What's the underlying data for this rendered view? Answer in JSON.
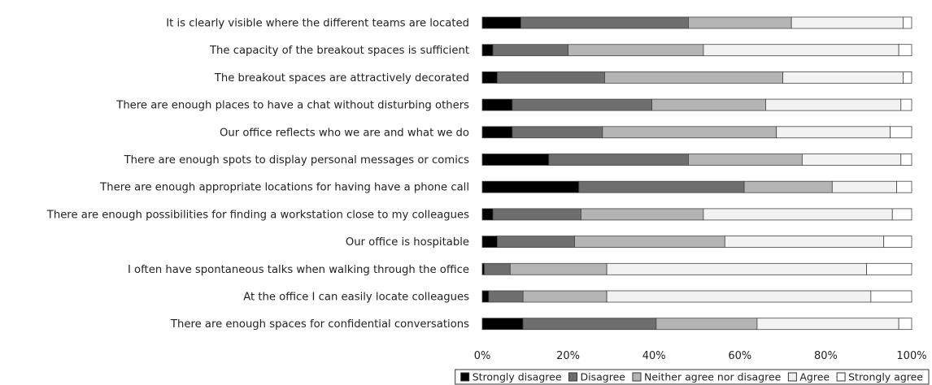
{
  "chart_data": {
    "type": "bar",
    "orientation": "horizontal",
    "stacked": true,
    "normalized_percent": true,
    "title": "",
    "xlabel": "",
    "ylabel": "",
    "xlim": [
      0,
      100
    ],
    "x_ticks": [
      "0%",
      "20%",
      "40%",
      "60%",
      "80%",
      "100%"
    ],
    "grid": false,
    "legend_position": "bottom",
    "categories": [
      "It is clearly visible where the different teams are located",
      "The capacity of the breakout spaces is sufficient",
      "The breakout spaces are attractively decorated",
      "There are enough places to have a chat without disturbing others",
      "Our office reflects who we are and what we do",
      "There are enough spots to display personal messages or comics",
      "There are enough appropriate locations for having have a phone call",
      "There are enough possibilities for finding a workstation close to my colleagues",
      "Our office is hospitable",
      "I often have spontaneous talks when walking through the office",
      "At the office I can easily locate colleagues",
      "There are enough spaces for confidential conversations"
    ],
    "series": [
      {
        "name": "Strongly disagree",
        "color": "#000000",
        "values": [
          9,
          2.5,
          3.5,
          7,
          7,
          15.5,
          22.5,
          2.5,
          3.5,
          0.5,
          1.5,
          9.5
        ]
      },
      {
        "name": "Disagree",
        "color": "#6e6e6e",
        "values": [
          39,
          17.5,
          25,
          32.5,
          21,
          32.5,
          38.5,
          20.5,
          18,
          6,
          8,
          31
        ]
      },
      {
        "name": "Neither agree nor disagree",
        "color": "#b4b4b4",
        "values": [
          24,
          31.5,
          41.5,
          26.5,
          40.5,
          26.5,
          20.5,
          28.5,
          35,
          22.5,
          19.5,
          23.5
        ]
      },
      {
        "name": "Agree",
        "color": "#f2f2f2",
        "values": [
          26,
          45.5,
          28,
          31.5,
          26.5,
          23,
          15,
          44,
          37,
          60.5,
          61.5,
          33
        ]
      },
      {
        "name": "Strongly agree",
        "color": "#ffffff",
        "values": [
          2,
          3,
          2,
          2.5,
          5,
          2.5,
          3.5,
          4.5,
          6.5,
          10.5,
          9.5,
          3
        ]
      }
    ]
  }
}
